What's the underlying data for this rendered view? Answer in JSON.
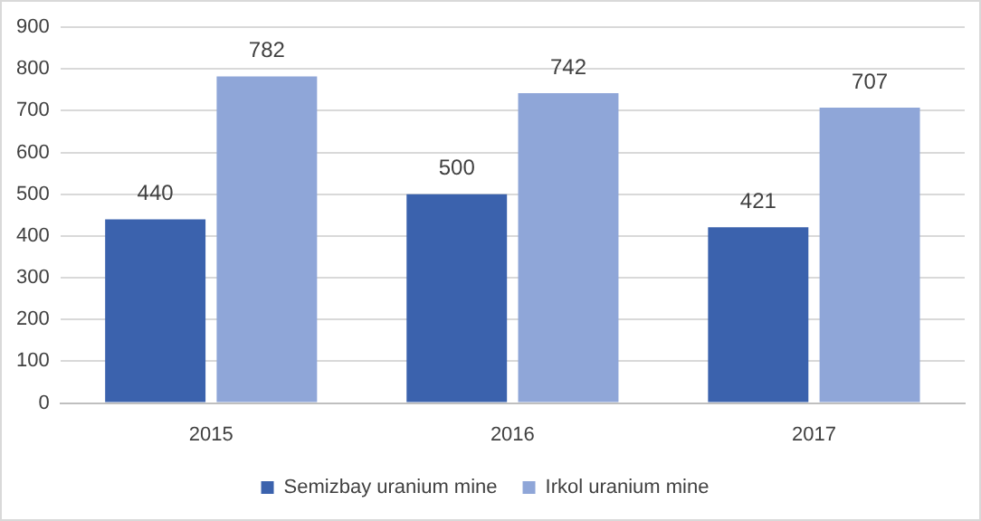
{
  "chart_data": {
    "type": "bar",
    "categories": [
      "2015",
      "2016",
      "2017"
    ],
    "series": [
      {
        "name": "Semizbay uranium mine",
        "color": "#3b62ad",
        "values": [
          440,
          500,
          421
        ]
      },
      {
        "name": "Irkol uranium mine",
        "color": "#8fa6d8",
        "values": [
          782,
          742,
          707
        ]
      }
    ],
    "ylim": [
      0,
      900
    ],
    "yticks": [
      0,
      100,
      200,
      300,
      400,
      500,
      600,
      700,
      800,
      900
    ],
    "grid": "y",
    "legend": "bottom",
    "data_labels": true
  }
}
